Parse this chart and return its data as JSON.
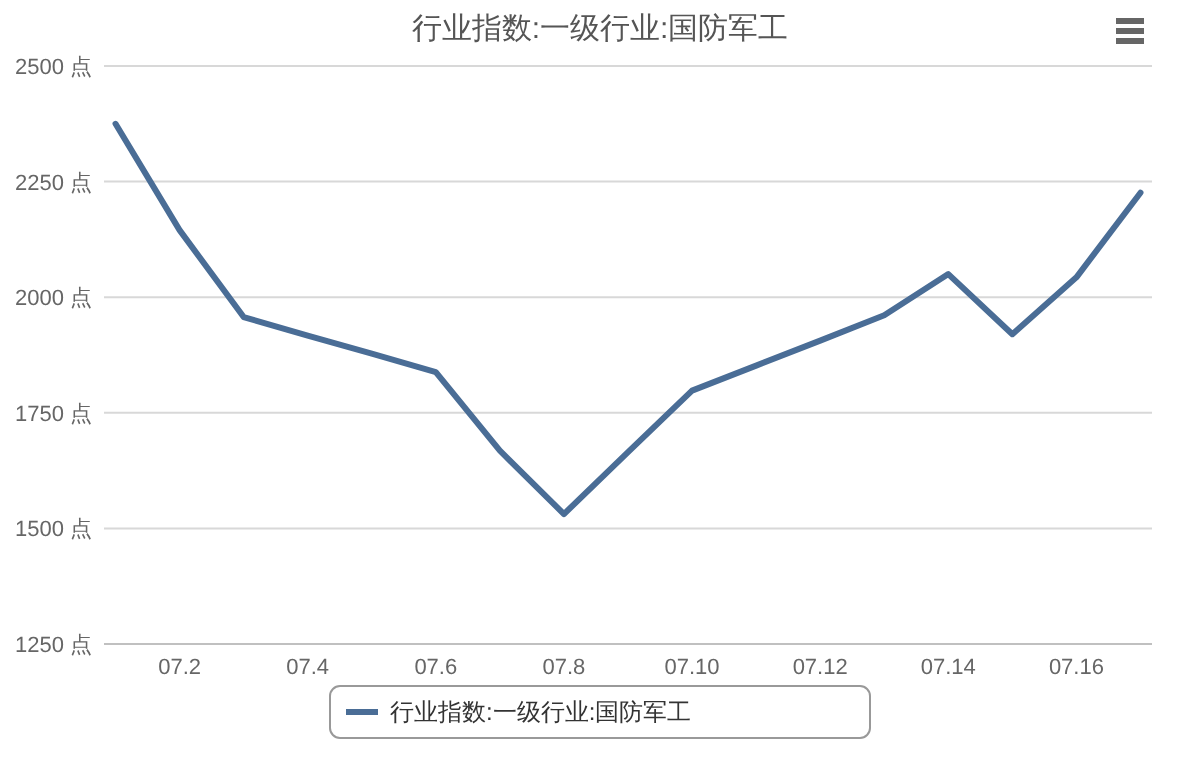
{
  "chart_data": {
    "type": "line",
    "title": "行业指数:一级行业:国防军工",
    "categories": [
      null,
      "07.2",
      null,
      "07.4",
      null,
      "07.6",
      null,
      "07.8",
      null,
      "07.10",
      null,
      "07.12",
      null,
      "07.14",
      null,
      "07.16",
      null
    ],
    "series": [
      {
        "name": "行业指数:一级行业:国防军工",
        "color": "#4a6d96",
        "values": [
          2375,
          2145,
          1957,
          1917,
          1878,
          1838,
          1668,
          1531,
          1665,
          1798,
          1852,
          1906,
          1961,
          2050,
          1920,
          2043,
          2226
        ]
      }
    ],
    "ylim": [
      1250,
      2500
    ],
    "yticks": [
      {
        "value": 1250,
        "label": "1250 点"
      },
      {
        "value": 1500,
        "label": "1500 点"
      },
      {
        "value": 1750,
        "label": "1750 点"
      },
      {
        "value": 2000,
        "label": "2000 点"
      },
      {
        "value": 2250,
        "label": "2250 点"
      },
      {
        "value": 2500,
        "label": "2500 点"
      }
    ],
    "grid": "y",
    "legend": "bottom",
    "marker": "none",
    "line_style": "solid"
  }
}
